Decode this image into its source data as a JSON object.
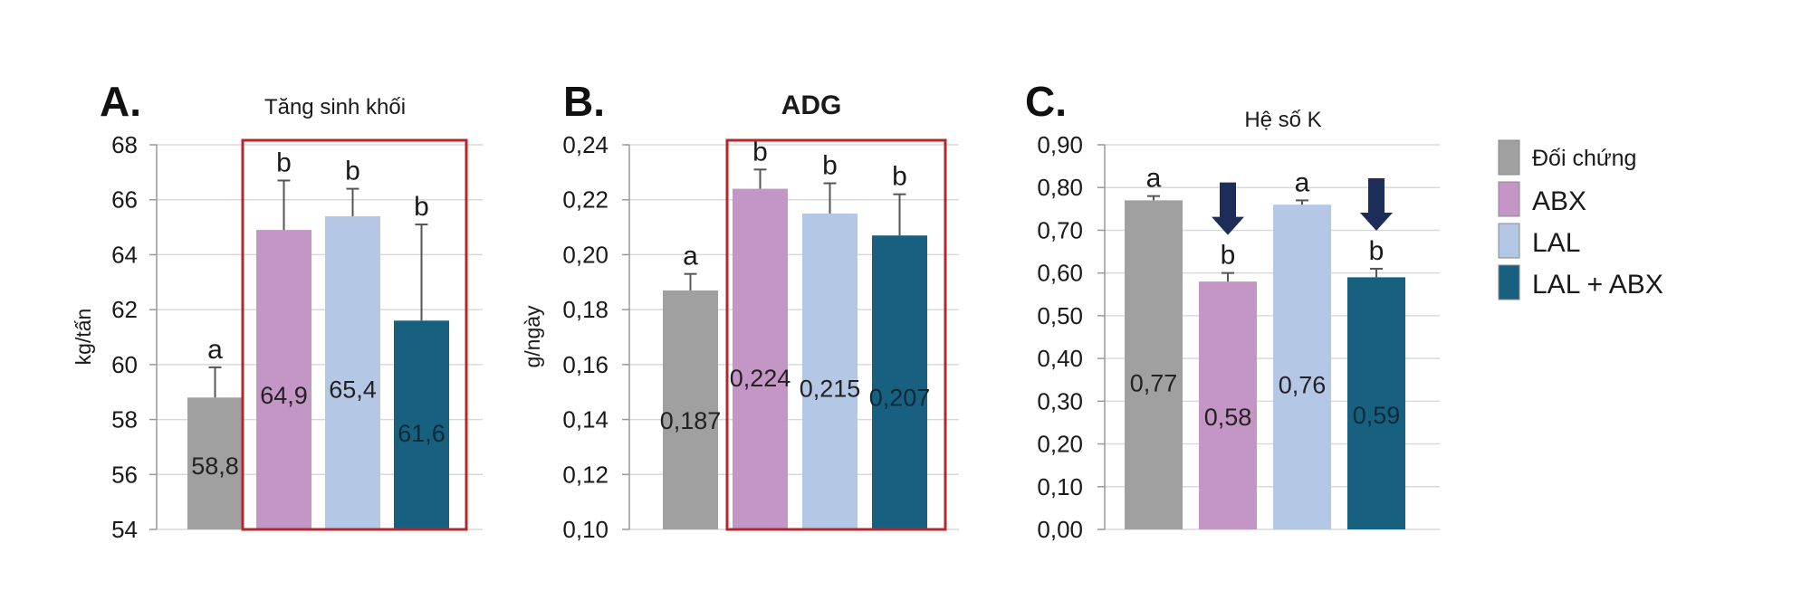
{
  "legend": {
    "items": [
      {
        "label": "Đối chứng",
        "color": "#a0a0a0"
      },
      {
        "label": "ABX",
        "color": "#c496c6"
      },
      {
        "label": "LAL",
        "color": "#b4c8e6"
      },
      {
        "label": "LAL + ABX",
        "color": "#17607f"
      }
    ]
  },
  "chart_data": [
    {
      "panel": "A.",
      "type": "bar",
      "title": "Tăng sinh khối",
      "ylabel": "kg/tấn",
      "ylim": [
        54,
        68
      ],
      "yticks": [
        "54",
        "56",
        "58",
        "60",
        "62",
        "64",
        "66",
        "68"
      ],
      "grid": true,
      "categories": [
        "Đối chứng",
        "ABX",
        "LAL",
        "LAL + ABX"
      ],
      "values": [
        58.8,
        64.9,
        65.4,
        61.6
      ],
      "error_upper": [
        59.9,
        66.7,
        66.4,
        65.1
      ],
      "data_labels": [
        "58,8",
        "64,9",
        "65,4",
        "61,6"
      ],
      "significance": [
        "a",
        "b",
        "b",
        "b"
      ],
      "highlight_box": true
    },
    {
      "panel": "B.",
      "type": "bar",
      "title": "ADG",
      "ylabel": "g/ngày",
      "ylim": [
        0.1,
        0.24
      ],
      "yticks": [
        "0,10",
        "0,12",
        "0,14",
        "0,16",
        "0,18",
        "0,20",
        "0,22",
        "0,24"
      ],
      "grid": true,
      "categories": [
        "Đối chứng",
        "ABX",
        "LAL",
        "LAL + ABX"
      ],
      "values": [
        0.187,
        0.224,
        0.215,
        0.207
      ],
      "error_upper": [
        0.193,
        0.231,
        0.226,
        0.222
      ],
      "data_labels": [
        "0,187",
        "0,224",
        "0,215",
        "0,207"
      ],
      "significance": [
        "a",
        "b",
        "b",
        "b"
      ],
      "highlight_box": true
    },
    {
      "panel": "C.",
      "type": "bar",
      "title": "Hệ số K",
      "ylabel": "",
      "ylim": [
        0,
        0.9
      ],
      "yticks": [
        "0,00",
        "0,10",
        "0,20",
        "0,30",
        "0,40",
        "0,50",
        "0,60",
        "0,70",
        "0,80",
        "0,90"
      ],
      "grid": true,
      "categories": [
        "Đối chứng",
        "ABX",
        "LAL",
        "LAL + ABX"
      ],
      "values": [
        0.77,
        0.58,
        0.76,
        0.59
      ],
      "error_upper": [
        0.78,
        0.6,
        0.77,
        0.61
      ],
      "data_labels": [
        "0,77",
        "0,58",
        "0,76",
        "0,59"
      ],
      "significance": [
        "a",
        "b",
        "a",
        "b"
      ],
      "down_arrows": [
        false,
        true,
        false,
        true
      ],
      "highlight_box": false
    }
  ]
}
